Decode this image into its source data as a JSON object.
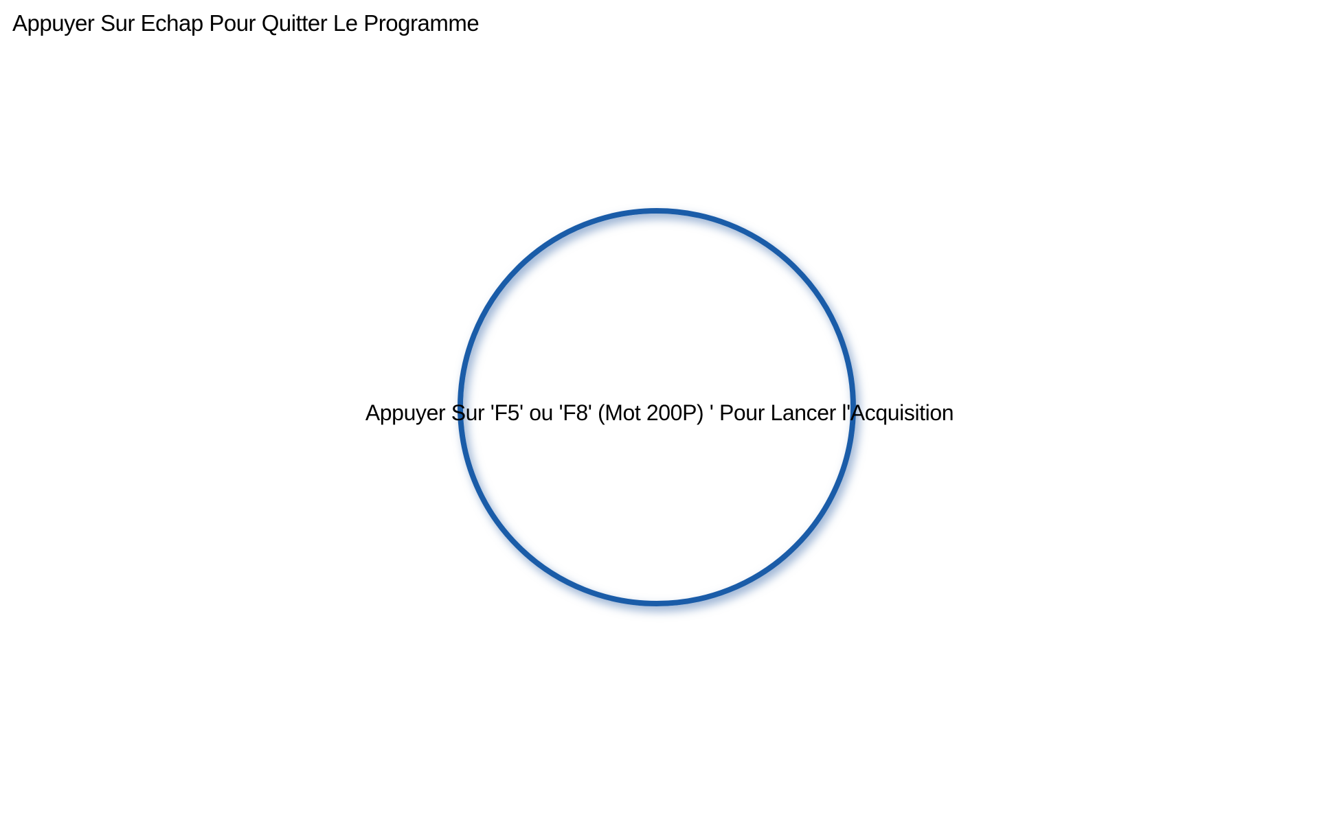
{
  "screen": {
    "escape_hint": "Appuyer Sur Echap Pour Quitter Le Programme",
    "launch_hint": "Appuyer Sur 'F5' ou 'F8' (Mot 200P) ' Pour Lancer l'Acquisition"
  },
  "theme": {
    "background": "#ffffff",
    "text-color": "#000000",
    "circle-stroke": "#1A5CA8",
    "circle-glow": "rgba(88, 128, 182, 0.55)"
  }
}
